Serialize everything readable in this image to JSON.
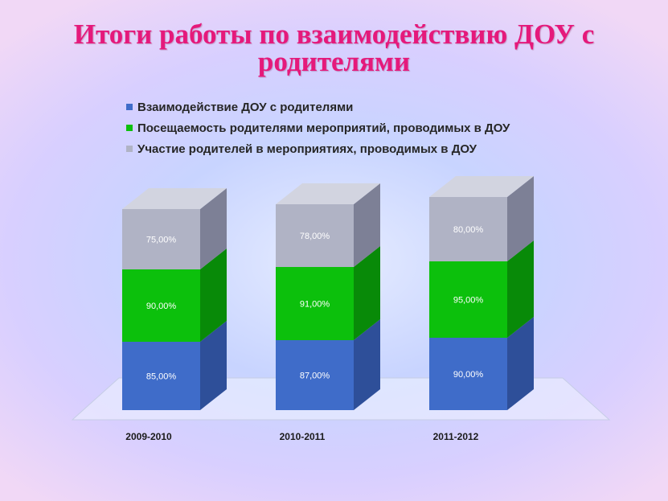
{
  "title": "Итоги работы по взаимодействию ДОУ с родителями",
  "chart_data": {
    "type": "bar",
    "stacked": true,
    "categories": [
      "2009-2010",
      "2010-2011",
      "2011-2012"
    ],
    "series": [
      {
        "name": "Взаимодействие ДОУ с родителями",
        "values": [
          85,
          87,
          90
        ],
        "labels": [
          "85,00%",
          "87,00%",
          "90,00%"
        ],
        "color": "#3f6cc9",
        "side": "#2e4f99",
        "top": "#6d8fdb"
      },
      {
        "name": "Посещаемость родителями мероприятий, проводимых в ДОУ",
        "values": [
          90,
          91,
          95
        ],
        "labels": [
          "90,00%",
          "91,00%",
          "95,00%"
        ],
        "color": "#0cc00c",
        "side": "#088a08",
        "top": "#5ede5e"
      },
      {
        "name": "Участие родителей в мероприятиях, проводимых в ДОУ",
        "values": [
          75,
          78,
          80
        ],
        "labels": [
          "75,00%",
          "78,00%",
          "80,00%"
        ],
        "color": "#b0b3c5",
        "side": "#7d8096",
        "top": "#d2d4e0"
      }
    ],
    "legend_position": "top-left",
    "grid": false
  }
}
